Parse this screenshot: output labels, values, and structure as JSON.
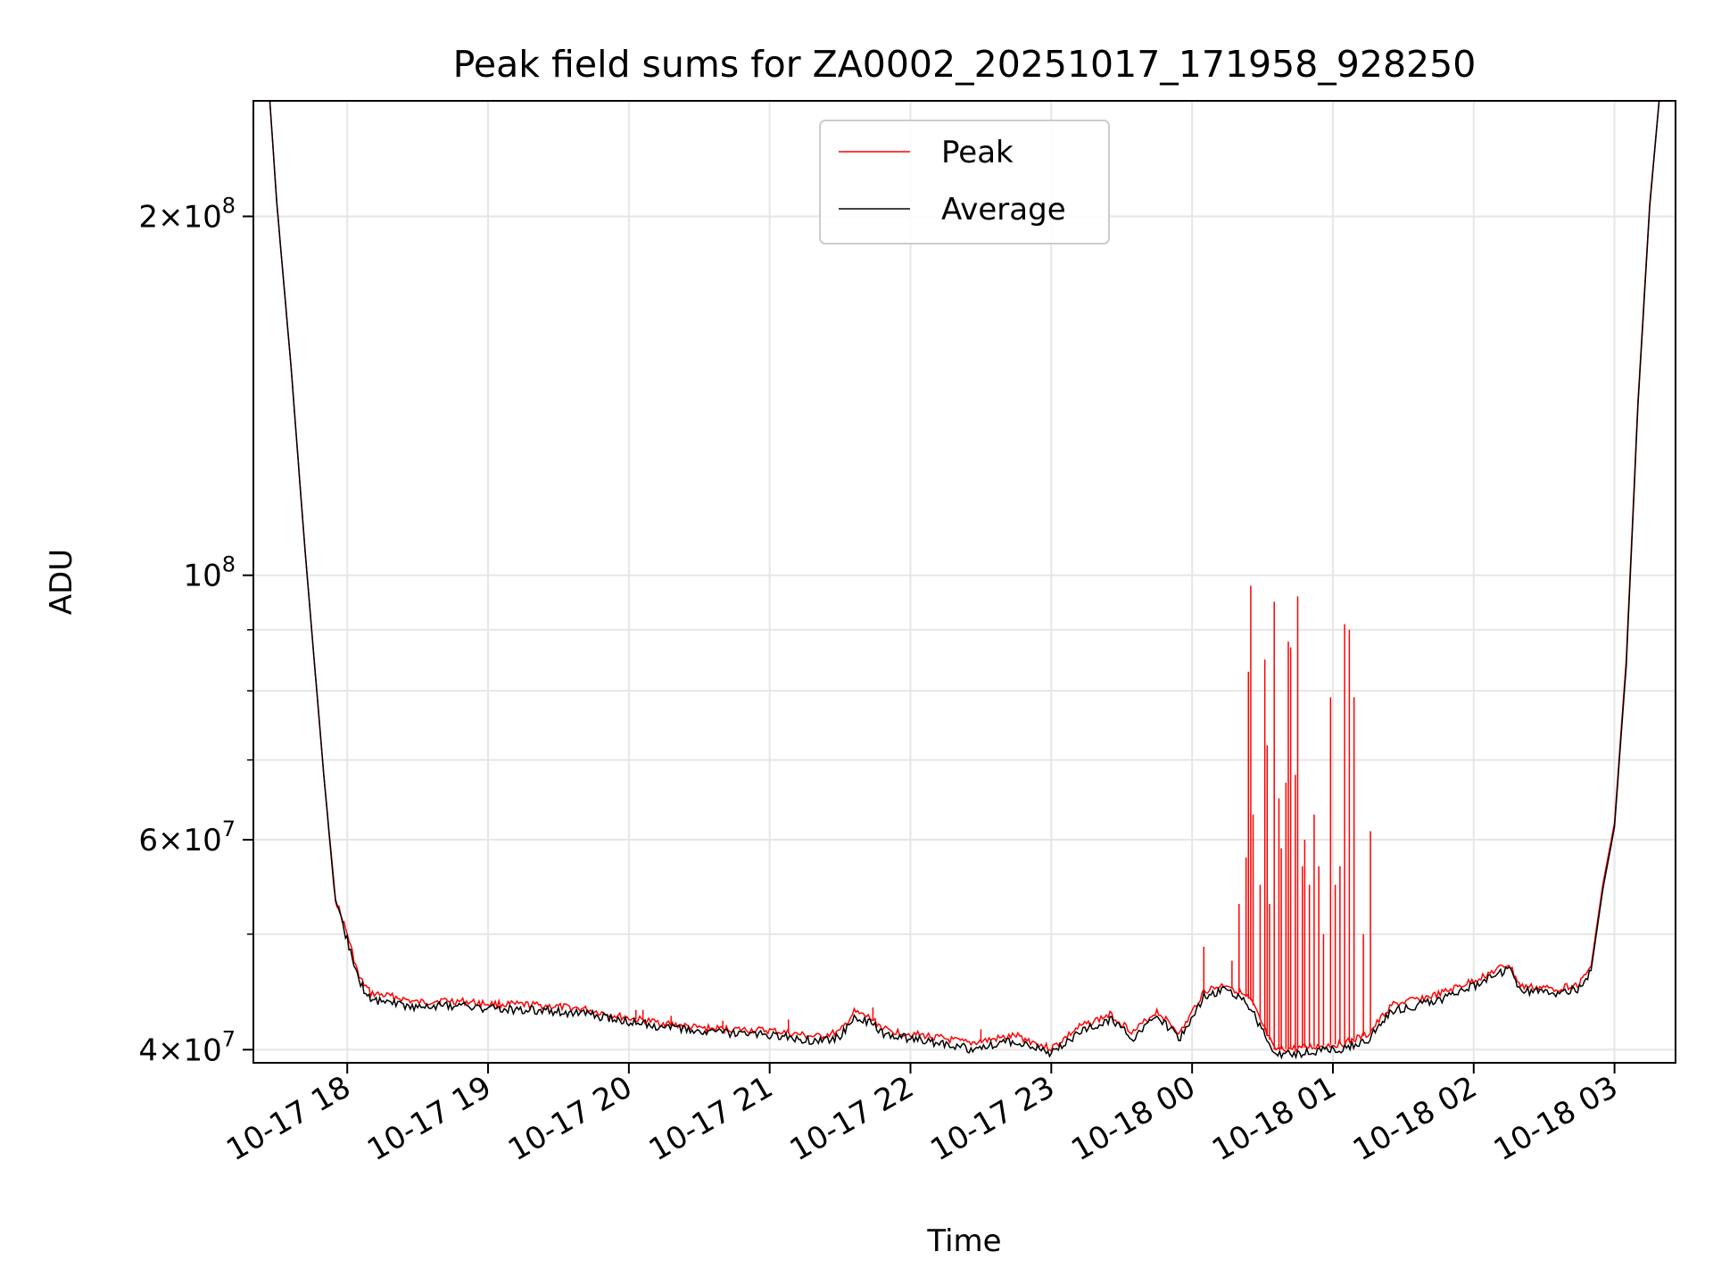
{
  "chart_data": {
    "type": "line",
    "title": "Peak field sums for ZA0002_20251017_171958_928250",
    "xlabel": "Time",
    "ylabel": "ADU",
    "yscale": "log",
    "ylim": [
      39000000,
      250000000
    ],
    "xlim": [
      "2025-10-17 17:20",
      "2025-10-18 03:26"
    ],
    "grid": true,
    "legend_position": "top-center",
    "x_ticks": [
      {
        "t": "2025-10-17 18:00",
        "label": "10-17 18"
      },
      {
        "t": "2025-10-17 19:00",
        "label": "10-17 19"
      },
      {
        "t": "2025-10-17 20:00",
        "label": "10-17 20"
      },
      {
        "t": "2025-10-17 21:00",
        "label": "10-17 21"
      },
      {
        "t": "2025-10-17 22:00",
        "label": "10-17 22"
      },
      {
        "t": "2025-10-17 23:00",
        "label": "10-17 23"
      },
      {
        "t": "2025-10-18 00:00",
        "label": "10-18 00"
      },
      {
        "t": "2025-10-18 01:00",
        "label": "10-18 01"
      },
      {
        "t": "2025-10-18 02:00",
        "label": "10-18 02"
      },
      {
        "t": "2025-10-18 03:00",
        "label": "10-18 03"
      }
    ],
    "y_major_ticks": [
      {
        "value": 40000000,
        "mant": "4",
        "exp": "7"
      },
      {
        "value": 60000000,
        "mant": "6",
        "exp": "7"
      },
      {
        "value": 100000000,
        "mant": "",
        "exp": "8"
      },
      {
        "value": 200000000,
        "mant": "2",
        "exp": "8"
      }
    ],
    "y_minor_ticks": [
      50000000,
      70000000,
      80000000,
      90000000
    ],
    "series": [
      {
        "name": "Peak",
        "color": "#ff0000",
        "points": [
          [
            "2025-10-17 17:20",
            250000000
          ],
          [
            "2025-10-17 17:27",
            250000000
          ],
          [
            "2025-10-17 17:30",
            205000000
          ],
          [
            "2025-10-17 17:36",
            150000000
          ],
          [
            "2025-10-17 17:42",
            105000000
          ],
          [
            "2025-10-17 17:50",
            68000000
          ],
          [
            "2025-10-17 17:55",
            53500000
          ],
          [
            "2025-10-17 18:00",
            50000000
          ],
          [
            "2025-10-17 18:05",
            46000000
          ],
          [
            "2025-10-17 18:10",
            44600000
          ],
          [
            "2025-10-17 18:20",
            44300000
          ],
          [
            "2025-10-17 18:30",
            43800000
          ],
          [
            "2025-10-17 18:40",
            44000000
          ],
          [
            "2025-10-17 18:50",
            43900000
          ],
          [
            "2025-10-17 19:00",
            43700000
          ],
          [
            "2025-10-17 19:20",
            43600000
          ],
          [
            "2025-10-17 19:40",
            43300000
          ],
          [
            "2025-10-17 20:00",
            42500000
          ],
          [
            "2025-10-17 20:30",
            41700000
          ],
          [
            "2025-10-17 21:00",
            41500000
          ],
          [
            "2025-10-17 21:20",
            41000000
          ],
          [
            "2025-10-17 21:30",
            41400000
          ],
          [
            "2025-10-17 21:36",
            43000000
          ],
          [
            "2025-10-17 21:42",
            42600000
          ],
          [
            "2025-10-17 21:50",
            41500000
          ],
          [
            "2025-10-17 22:10",
            41000000
          ],
          [
            "2025-10-17 22:25",
            40500000
          ],
          [
            "2025-10-17 22:45",
            41100000
          ],
          [
            "2025-10-17 22:55",
            40400000
          ],
          [
            "2025-10-17 23:00",
            40100000
          ],
          [
            "2025-10-17 23:12",
            41800000
          ],
          [
            "2025-10-17 23:25",
            42800000
          ],
          [
            "2025-10-17 23:35",
            41400000
          ],
          [
            "2025-10-17 23:45",
            43100000
          ],
          [
            "2025-10-17 23:55",
            41300000
          ],
          [
            "2025-10-18 00:05",
            44800000
          ],
          [
            "2025-10-18 00:15",
            45400000
          ],
          [
            "2025-10-18 00:25",
            44000000
          ],
          [
            "2025-10-18 00:35",
            40000000
          ],
          [
            "2025-10-18 00:45",
            40100000
          ],
          [
            "2025-10-18 00:55",
            40300000
          ],
          [
            "2025-10-18 01:05",
            40500000
          ],
          [
            "2025-10-18 01:15",
            41200000
          ],
          [
            "2025-10-18 01:25",
            43600000
          ],
          [
            "2025-10-18 01:45",
            44500000
          ],
          [
            "2025-10-18 02:00",
            45700000
          ],
          [
            "2025-10-18 02:10",
            46700000
          ],
          [
            "2025-10-18 02:15",
            47200000
          ],
          [
            "2025-10-18 02:20",
            45200000
          ],
          [
            "2025-10-18 02:35",
            45000000
          ],
          [
            "2025-10-18 02:45",
            45400000
          ],
          [
            "2025-10-18 02:50",
            47000000
          ],
          [
            "2025-10-18 02:55",
            55000000
          ],
          [
            "2025-10-18 03:00",
            62000000
          ],
          [
            "2025-10-18 03:05",
            85000000
          ],
          [
            "2025-10-18 03:10",
            140000000
          ],
          [
            "2025-10-18 03:15",
            205000000
          ],
          [
            "2025-10-18 03:19",
            250000000
          ],
          [
            "2025-10-18 03:26",
            250000000
          ]
        ],
        "spikes": [
          [
            "2025-10-17 20:03",
            43200000
          ],
          [
            "2025-10-17 20:06",
            43200000
          ],
          [
            "2025-10-17 20:18",
            42700000
          ],
          [
            "2025-10-17 20:40",
            42300000
          ],
          [
            "2025-10-17 21:08",
            42400000
          ],
          [
            "2025-10-17 21:44",
            43400000
          ],
          [
            "2025-10-17 22:30",
            41600000
          ],
          [
            "2025-10-18 00:05",
            48800000
          ],
          [
            "2025-10-18 00:17",
            47500000
          ],
          [
            "2025-10-18 00:20",
            53000000
          ],
          [
            "2025-10-18 00:23",
            58000000
          ],
          [
            "2025-10-18 00:24",
            83000000
          ],
          [
            "2025-10-18 00:25",
            98000000
          ],
          [
            "2025-10-18 00:26",
            63000000
          ],
          [
            "2025-10-18 00:29",
            55000000
          ],
          [
            "2025-10-18 00:31",
            85000000
          ],
          [
            "2025-10-18 00:32",
            72000000
          ],
          [
            "2025-10-18 00:33",
            53000000
          ],
          [
            "2025-10-18 00:35",
            95000000
          ],
          [
            "2025-10-18 00:37",
            65000000
          ],
          [
            "2025-10-18 00:38",
            59000000
          ],
          [
            "2025-10-18 00:40",
            67000000
          ],
          [
            "2025-10-18 00:41",
            88000000
          ],
          [
            "2025-10-18 00:42",
            87000000
          ],
          [
            "2025-10-18 00:44",
            68000000
          ],
          [
            "2025-10-18 00:45",
            96000000
          ],
          [
            "2025-10-18 00:47",
            57000000
          ],
          [
            "2025-10-18 00:48",
            60000000
          ],
          [
            "2025-10-18 00:50",
            55000000
          ],
          [
            "2025-10-18 00:52",
            63000000
          ],
          [
            "2025-10-18 00:54",
            57000000
          ],
          [
            "2025-10-18 00:56",
            50000000
          ],
          [
            "2025-10-18 00:59",
            79000000
          ],
          [
            "2025-10-18 01:01",
            55000000
          ],
          [
            "2025-10-18 01:03",
            57000000
          ],
          [
            "2025-10-18 01:05",
            91000000
          ],
          [
            "2025-10-18 01:07",
            90000000
          ],
          [
            "2025-10-18 01:09",
            79000000
          ],
          [
            "2025-10-18 01:13",
            50000000
          ],
          [
            "2025-10-18 01:16",
            61000000
          ]
        ]
      },
      {
        "name": "Average",
        "color": "#000000",
        "points": [
          [
            "2025-10-17 17:20",
            250000000
          ],
          [
            "2025-10-17 17:27",
            250000000
          ],
          [
            "2025-10-17 17:30",
            205000000
          ],
          [
            "2025-10-17 17:36",
            150000000
          ],
          [
            "2025-10-17 17:42",
            105000000
          ],
          [
            "2025-10-17 17:50",
            68000000
          ],
          [
            "2025-10-17 17:55",
            53000000
          ],
          [
            "2025-10-17 18:00",
            49500000
          ],
          [
            "2025-10-17 18:05",
            45600000
          ],
          [
            "2025-10-17 18:10",
            44100000
          ],
          [
            "2025-10-17 18:20",
            43800000
          ],
          [
            "2025-10-17 18:30",
            43400000
          ],
          [
            "2025-10-17 18:40",
            43600000
          ],
          [
            "2025-10-17 18:50",
            43500000
          ],
          [
            "2025-10-17 19:00",
            43300000
          ],
          [
            "2025-10-17 19:20",
            43200000
          ],
          [
            "2025-10-17 19:40",
            42900000
          ],
          [
            "2025-10-17 20:00",
            42200000
          ],
          [
            "2025-10-17 20:30",
            41400000
          ],
          [
            "2025-10-17 21:00",
            41100000
          ],
          [
            "2025-10-17 21:20",
            40700000
          ],
          [
            "2025-10-17 21:30",
            41000000
          ],
          [
            "2025-10-17 21:36",
            42500000
          ],
          [
            "2025-10-17 21:42",
            42200000
          ],
          [
            "2025-10-17 21:50",
            41100000
          ],
          [
            "2025-10-17 22:10",
            40600000
          ],
          [
            "2025-10-17 22:25",
            40100000
          ],
          [
            "2025-10-17 22:45",
            40700000
          ],
          [
            "2025-10-17 22:55",
            40000000
          ],
          [
            "2025-10-17 23:00",
            39700000
          ],
          [
            "2025-10-17 23:12",
            41400000
          ],
          [
            "2025-10-17 23:25",
            42400000
          ],
          [
            "2025-10-17 23:35",
            41000000
          ],
          [
            "2025-10-17 23:45",
            42700000
          ],
          [
            "2025-10-17 23:55",
            40900000
          ],
          [
            "2025-10-18 00:05",
            44300000
          ],
          [
            "2025-10-18 00:15",
            44900000
          ],
          [
            "2025-10-18 00:25",
            43400000
          ],
          [
            "2025-10-18 00:35",
            39600000
          ],
          [
            "2025-10-18 00:45",
            39700000
          ],
          [
            "2025-10-18 00:55",
            39900000
          ],
          [
            "2025-10-18 01:05",
            40100000
          ],
          [
            "2025-10-18 01:15",
            40800000
          ],
          [
            "2025-10-18 01:25",
            43100000
          ],
          [
            "2025-10-18 01:45",
            44000000
          ],
          [
            "2025-10-18 02:00",
            45200000
          ],
          [
            "2025-10-18 02:10",
            46200000
          ],
          [
            "2025-10-18 02:15",
            46700000
          ],
          [
            "2025-10-18 02:20",
            44800000
          ],
          [
            "2025-10-18 02:35",
            44600000
          ],
          [
            "2025-10-18 02:45",
            45000000
          ],
          [
            "2025-10-18 02:50",
            46600000
          ],
          [
            "2025-10-18 02:55",
            54500000
          ],
          [
            "2025-10-18 03:00",
            61500000
          ],
          [
            "2025-10-18 03:05",
            84000000
          ],
          [
            "2025-10-18 03:10",
            139000000
          ],
          [
            "2025-10-18 03:15",
            204000000
          ],
          [
            "2025-10-18 03:19",
            250000000
          ],
          [
            "2025-10-18 03:26",
            250000000
          ]
        ]
      }
    ]
  }
}
